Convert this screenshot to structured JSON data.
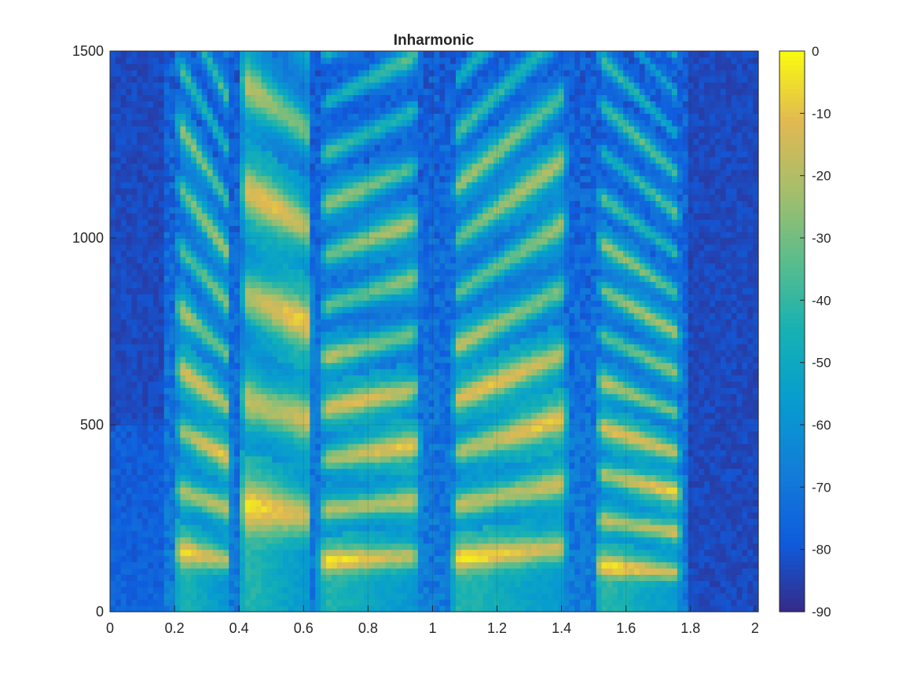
{
  "chart_data": {
    "type": "heatmap",
    "title": "Inharmonic",
    "xlabel": "",
    "ylabel": "",
    "xlim": [
      0,
      2.01
    ],
    "ylim": [
      0,
      1500
    ],
    "clim": [
      -90,
      0
    ],
    "x_ticks": [
      "0",
      "0.2",
      "0.4",
      "0.6",
      "0.8",
      "1",
      "1.2",
      "1.4",
      "1.6",
      "1.8",
      "2"
    ],
    "x_tick_values": [
      0,
      0.2,
      0.4,
      0.6,
      0.8,
      1,
      1.2,
      1.4,
      1.6,
      1.8,
      2
    ],
    "y_ticks": [
      "0",
      "500",
      "1000",
      "1500"
    ],
    "y_tick_values": [
      0,
      500,
      1000,
      1500
    ],
    "colorbar_ticks": [
      "0",
      "-10",
      "-20",
      "-30",
      "-40",
      "-50",
      "-60",
      "-70",
      "-80",
      "-90"
    ],
    "colorbar_tick_values": [
      0,
      -10,
      -20,
      -30,
      -40,
      -50,
      -60,
      -70,
      -80,
      -90
    ],
    "colormap": "parula",
    "grid": true,
    "background_level_db": -86,
    "noise_region": {
      "start": 0.17,
      "end": 1.8,
      "level_db": -68
    },
    "voiced_segments": [
      {
        "start": 0.2,
        "end": 0.38,
        "f0_start": 165,
        "f0_end": 135,
        "peak_db": -14
      },
      {
        "start": 0.4,
        "end": 0.63,
        "f0_start": 285,
        "f0_end": 255,
        "peak_db": -12
      },
      {
        "start": 0.64,
        "end": 0.97,
        "f0_start": 135,
        "f0_end": 150,
        "peak_db": -13
      },
      {
        "start": 1.05,
        "end": 1.43,
        "f0_start": 140,
        "f0_end": 175,
        "peak_db": -12
      },
      {
        "start": 1.5,
        "end": 1.78,
        "f0_start": 125,
        "f0_end": 105,
        "peak_db": -12
      }
    ]
  }
}
